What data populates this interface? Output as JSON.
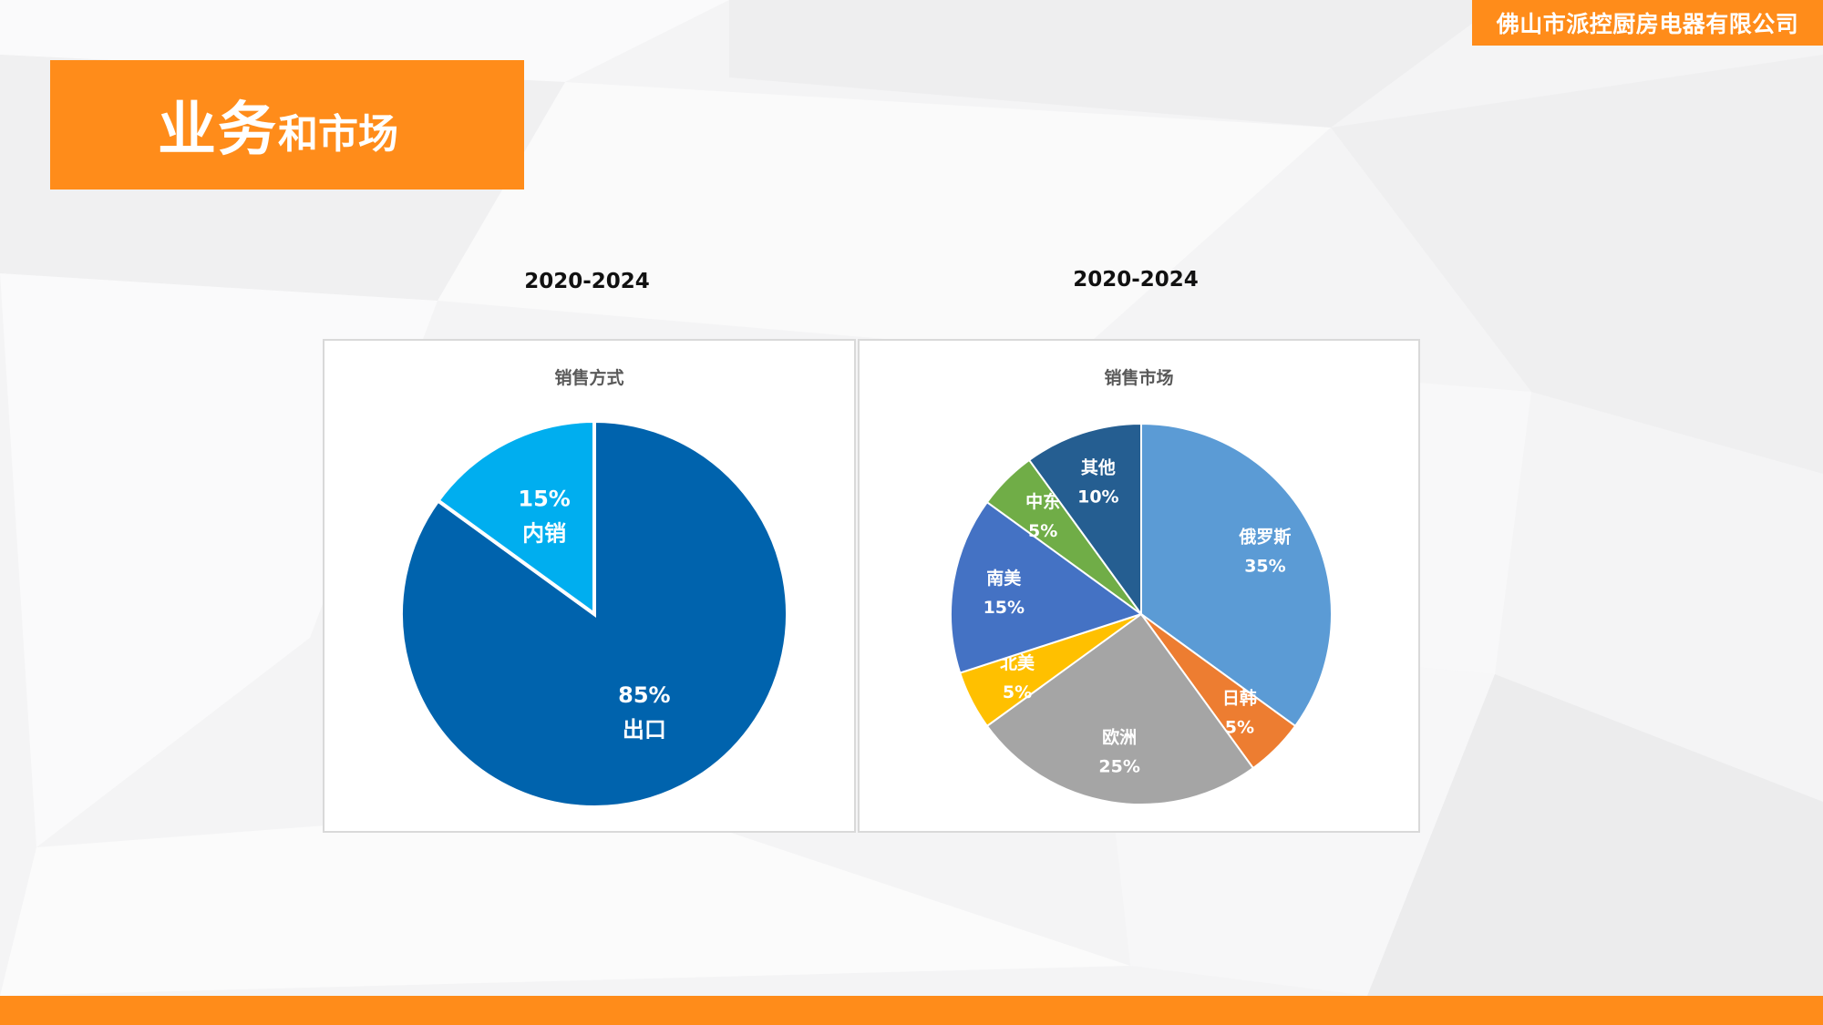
{
  "company": "佛山市派控厨房电器有限公司",
  "title": {
    "big": "业务",
    "small": "和市场"
  },
  "charts": [
    {
      "year": "2020-2024",
      "chart_data": {
        "type": "pie",
        "title": "销售方式",
        "slices": [
          {
            "name": "出口",
            "value": 85,
            "label": "85%",
            "color": "#0063ad"
          },
          {
            "name": "内销",
            "value": 15,
            "label": "15%",
            "color": "#00aeef"
          }
        ]
      }
    },
    {
      "year": "2020-2024",
      "chart_data": {
        "type": "pie",
        "title": "销售市场",
        "slices": [
          {
            "name": "俄罗斯",
            "value": 35,
            "label": "35%",
            "color": "#5b9bd5"
          },
          {
            "name": "日韩",
            "value": 5,
            "label": "5%",
            "color": "#ed7d31"
          },
          {
            "name": "欧洲",
            "value": 25,
            "label": "25%",
            "color": "#a5a5a5"
          },
          {
            "name": "北美",
            "value": 5,
            "label": "5%",
            "color": "#ffc000"
          },
          {
            "name": "南美",
            "value": 15,
            "label": "15%",
            "color": "#4472c4"
          },
          {
            "name": "中东",
            "value": 5,
            "label": "5%",
            "color": "#70ad47"
          },
          {
            "name": "其他",
            "value": 10,
            "label": "10%",
            "color": "#255e91"
          }
        ]
      }
    }
  ]
}
